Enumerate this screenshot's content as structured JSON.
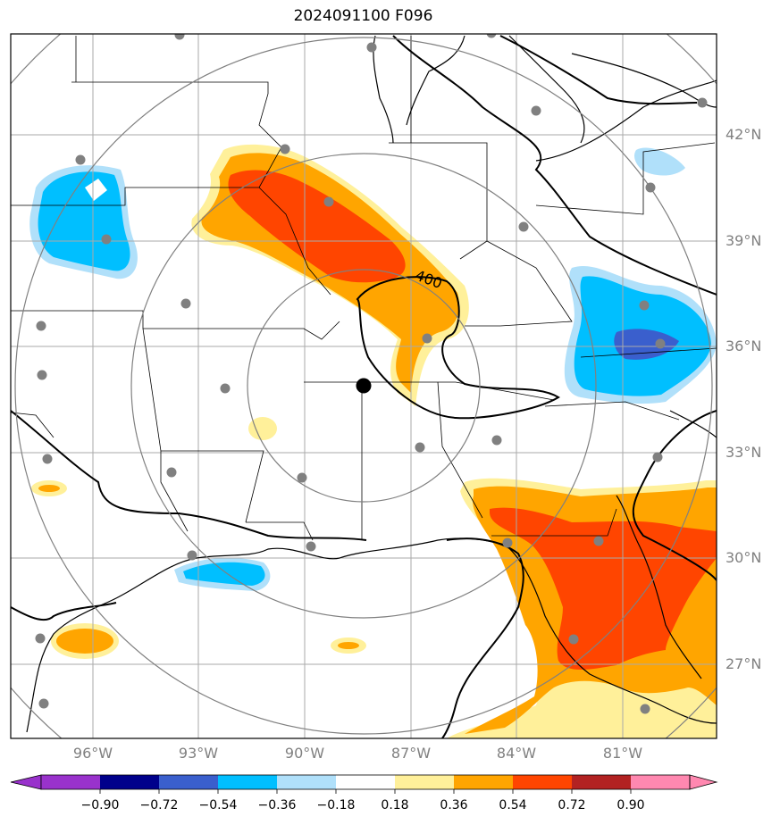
{
  "title": "2024091100 F096",
  "contour_label": "400",
  "lat_labels": [
    "42°N",
    "39°N",
    "36°N",
    "33°N",
    "30°N",
    "27°N"
  ],
  "lon_labels": [
    "96°W",
    "93°W",
    "90°W",
    "87°W",
    "84°W",
    "81°W"
  ],
  "colorbar": {
    "ticks": [
      "−0.90",
      "−0.72",
      "−0.54",
      "−0.36",
      "−0.18",
      "0.18",
      "0.36",
      "0.54",
      "0.72",
      "0.90"
    ],
    "colors": [
      "#9932cc",
      "#00008b",
      "#3a5fcd",
      "#00bfff",
      "#b0e0fa",
      "#ffffff",
      "#fff09a",
      "#ffa500",
      "#ff4500",
      "#b22222",
      "#ff88b0"
    ]
  },
  "colors": {
    "grid": "#aaaaaa",
    "rings": "#808080",
    "stations": "#808080",
    "center": "#000000"
  }
}
